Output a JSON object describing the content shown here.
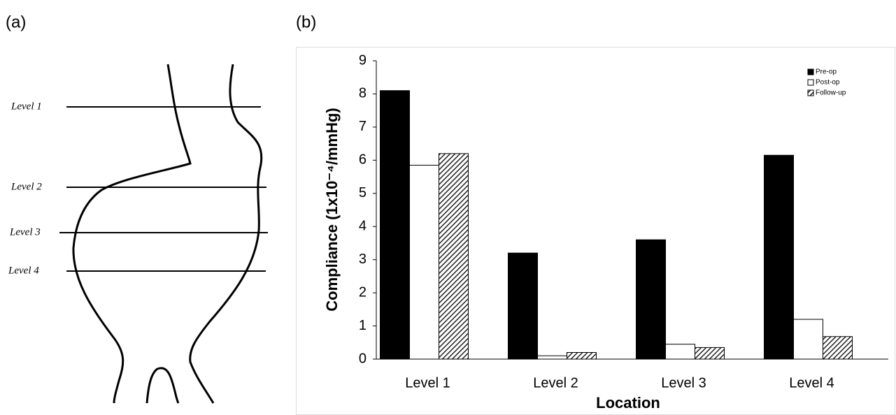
{
  "panels": [
    "(a)",
    "(b)"
  ],
  "diagram": {
    "levels": [
      "Level 1",
      "Level 2",
      "Level 3",
      "Level 4"
    ]
  },
  "chart_data": {
    "type": "bar",
    "y_label": "Compliance (1x10⁻⁴/mmHg)",
    "x_label": "Location",
    "categories": [
      "Level 1",
      "Level 2",
      "Level 3",
      "Level 4"
    ],
    "series": [
      {
        "name": "Pre-op",
        "color": "#000000",
        "values": [
          8.1,
          3.2,
          3.6,
          6.15
        ]
      },
      {
        "name": "Post-op",
        "color": "#ffffff",
        "values": [
          5.85,
          0.1,
          0.45,
          1.2
        ]
      },
      {
        "name": "Follow-up",
        "color": "#000000",
        "pattern": "hatch",
        "values": [
          6.2,
          0.2,
          0.35,
          0.68
        ]
      }
    ],
    "ylim": [
      0,
      9
    ],
    "yticks": [
      0,
      1,
      2,
      3,
      4,
      5,
      6,
      7,
      8,
      9
    ],
    "grid": false,
    "legend": "top-right"
  }
}
